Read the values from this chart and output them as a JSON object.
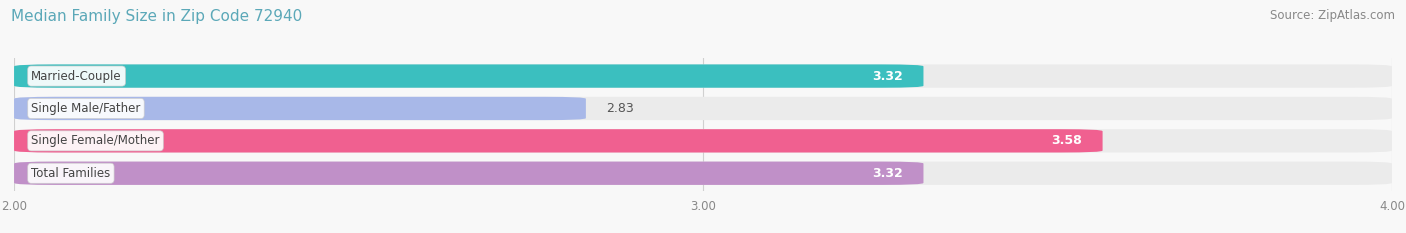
{
  "title": "Median Family Size in Zip Code 72940",
  "source": "Source: ZipAtlas.com",
  "categories": [
    "Married-Couple",
    "Single Male/Father",
    "Single Female/Mother",
    "Total Families"
  ],
  "values": [
    3.32,
    2.83,
    3.58,
    3.32
  ],
  "bar_colors": [
    "#3bbfbf",
    "#a8b8e8",
    "#f06090",
    "#c090c8"
  ],
  "bar_bg_colors": [
    "#ebebeb",
    "#ebebeb",
    "#ebebeb",
    "#ebebeb"
  ],
  "value_inside": [
    true,
    false,
    true,
    true
  ],
  "xlim": [
    2.0,
    4.0
  ],
  "xticks": [
    2.0,
    3.0,
    4.0
  ],
  "xtick_labels": [
    "2.00",
    "3.00",
    "4.00"
  ],
  "title_color": "#5ba8b8",
  "title_fontsize": 11,
  "source_fontsize": 8.5,
  "bar_height": 0.72,
  "fig_bg": "#f8f8f8",
  "axes_bg": "#f8f8f8",
  "grid_color": "#d0d0d0",
  "value_fontsize": 9,
  "label_fontsize": 8.5,
  "tick_fontsize": 8.5,
  "tick_color": "#888888"
}
